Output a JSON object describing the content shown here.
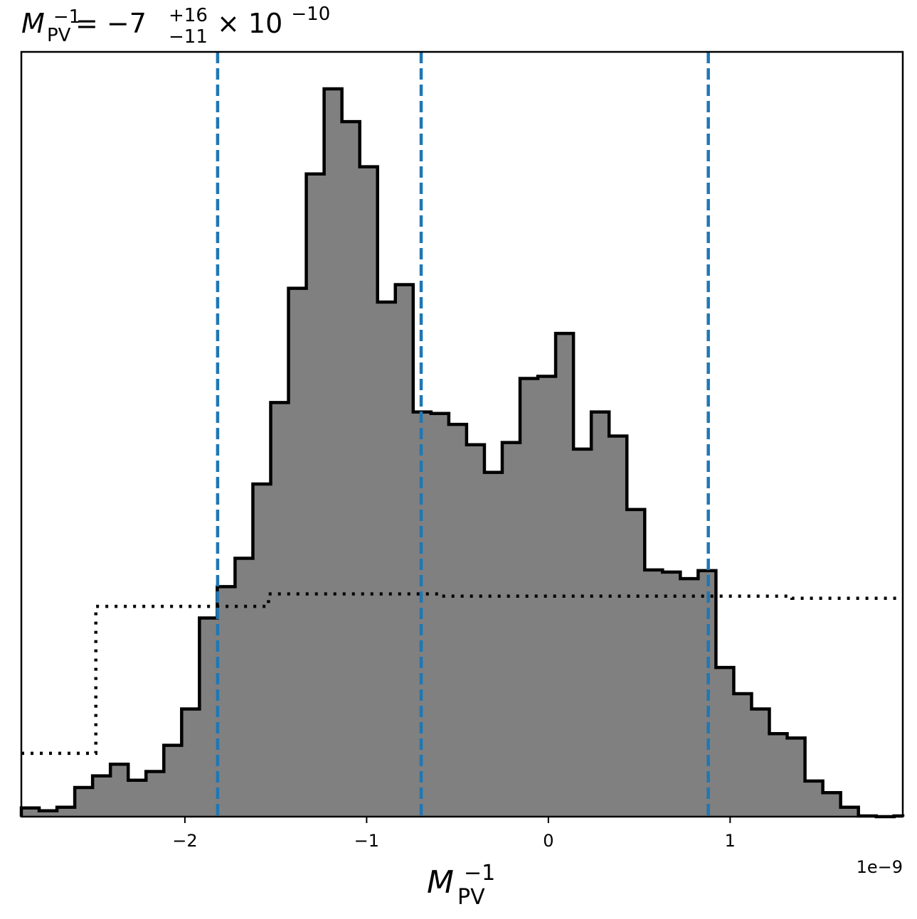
{
  "chart_data": {
    "type": "histogram",
    "title": {
      "base": "M",
      "base_sub": "PV",
      "base_sup": "−1",
      "equals": " = −7",
      "err_up": "+16",
      "err_down": "−11",
      "times": " × 10",
      "exp": "−10"
    },
    "xlabel": {
      "base": "M",
      "sub": "PV",
      "sup": "−1"
    },
    "x_offset_label": "1e−9",
    "xlim": [
      -2.9,
      1.95
    ],
    "ylim": [
      0,
      1.0
    ],
    "scale": 1e-09,
    "ticks": [
      {
        "value": -2,
        "label": "−2"
      },
      {
        "value": -1,
        "label": "−1"
      },
      {
        "value": 0,
        "label": "0"
      },
      {
        "value": 1,
        "label": "1"
      }
    ],
    "bin_edges": [
      -2.9,
      -2.802,
      -2.704,
      -2.606,
      -2.508,
      -2.41,
      -2.312,
      -2.214,
      -2.116,
      -2.018,
      -1.92,
      -1.822,
      -1.724,
      -1.626,
      -1.528,
      -1.43,
      -1.332,
      -1.234,
      -1.136,
      -1.038,
      -0.94,
      -0.842,
      -0.744,
      -0.646,
      -0.548,
      -0.45,
      -0.352,
      -0.254,
      -0.156,
      -0.058,
      0.04,
      0.138,
      0.236,
      0.334,
      0.432,
      0.53,
      0.628,
      0.726,
      0.824,
      0.922,
      1.02,
      1.118,
      1.216,
      1.314,
      1.412,
      1.51,
      1.608,
      1.706,
      1.804,
      1.902,
      1.95
    ],
    "counts": [
      0.012,
      0.008,
      0.013,
      0.04,
      0.056,
      0.072,
      0.05,
      0.062,
      0.098,
      0.148,
      0.273,
      0.316,
      0.355,
      0.457,
      0.569,
      0.726,
      0.883,
      1.0,
      0.955,
      0.893,
      0.707,
      0.731,
      0.556,
      0.554,
      0.539,
      0.511,
      0.473,
      0.514,
      0.602,
      0.605,
      0.664,
      0.505,
      0.556,
      0.523,
      0.422,
      0.339,
      0.336,
      0.327,
      0.338,
      0.205,
      0.169,
      0.148,
      0.114,
      0.108,
      0.049,
      0.033,
      0.013,
      0.001,
      0.0,
      0.001
    ],
    "prior_steps": [
      {
        "x0": -2.9,
        "x1": -2.49,
        "y": 0.087
      },
      {
        "x0": -2.49,
        "x1": -1.54,
        "y": 0.289
      },
      {
        "x0": -1.54,
        "x1": -0.6,
        "y": 0.306
      },
      {
        "x0": -0.6,
        "x1": 1.34,
        "y": 0.303
      },
      {
        "x0": 1.34,
        "x1": 1.95,
        "y": 0.3
      }
    ],
    "quantile_lines": [
      -1.82,
      -0.7,
      0.88
    ],
    "colors": {
      "fill": "#808080",
      "edge": "#000000",
      "quantile": "#1f77b4",
      "prior": "#000000"
    }
  }
}
